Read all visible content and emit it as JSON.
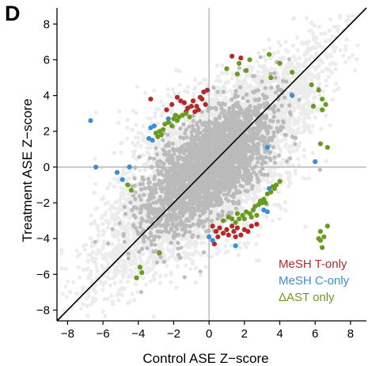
{
  "panel_label": "D",
  "chart_data": {
    "type": "scatter",
    "title": "",
    "xlabel": "Control ASE Z−score",
    "ylabel": "Treatment ASE Z−score",
    "xlim": [
      -8.6,
      8.9
    ],
    "ylim": [
      -8.6,
      8.9
    ],
    "xticks": [
      -8,
      -6,
      -4,
      -2,
      0,
      2,
      4,
      6,
      8
    ],
    "yticks": [
      -8,
      -6,
      -4,
      -2,
      0,
      2,
      4,
      6,
      8
    ],
    "xtick_labels": [
      "−8",
      "−6",
      "−4",
      "−2",
      "0",
      "2",
      "4",
      "6",
      "8"
    ],
    "ytick_labels": [
      "−8",
      "−6",
      "−4",
      "−2",
      "0",
      "2",
      "4",
      "6",
      "8"
    ],
    "grid": false,
    "reference_lines": {
      "identity": true,
      "x_zero": true,
      "y_zero": true
    },
    "legend_position": "bottom-right",
    "background_cloud": {
      "color": "#aaaaaa",
      "description_of_extent": "dense band along identity line, x and y from about -8 to 8"
    },
    "series": [
      {
        "name": "MeSH T-only",
        "color": "#b22a2a",
        "points": [
          [
            -3.3,
            3.8
          ],
          [
            -2.1,
            3.5
          ],
          [
            -1.8,
            3.9
          ],
          [
            -1.6,
            3.7
          ],
          [
            -1.4,
            3.6
          ],
          [
            -1.2,
            3.3
          ],
          [
            -1.0,
            3.4
          ],
          [
            -0.9,
            3.7
          ],
          [
            -0.7,
            3.4
          ],
          [
            -0.6,
            3.2
          ],
          [
            -0.5,
            3.9
          ],
          [
            -0.4,
            3.8
          ],
          [
            -0.3,
            4.2
          ],
          [
            -0.2,
            3.5
          ],
          [
            -0.1,
            4.3
          ],
          [
            -2.4,
            3.2
          ],
          [
            -1.3,
            3.1
          ],
          [
            -0.8,
            3.1
          ],
          [
            1.3,
            6.2
          ],
          [
            1.8,
            6.1
          ],
          [
            0.2,
            -3.3
          ],
          [
            0.4,
            -3.6
          ],
          [
            0.5,
            -3.9
          ],
          [
            0.6,
            -3.4
          ],
          [
            0.8,
            -3.7
          ],
          [
            1.0,
            -3.5
          ],
          [
            1.1,
            -3.8
          ],
          [
            1.3,
            -3.3
          ],
          [
            1.4,
            -3.6
          ],
          [
            1.6,
            -3.4
          ],
          [
            1.8,
            -3.8
          ],
          [
            2.0,
            -3.5
          ],
          [
            2.2,
            -3.6
          ],
          [
            2.4,
            -3.3
          ],
          [
            2.7,
            -3.2
          ],
          [
            0.3,
            -4.3
          ],
          [
            1.5,
            -3.9
          ]
        ]
      },
      {
        "name": "MeSH C-only",
        "color": "#3a8ed8",
        "points": [
          [
            -6.7,
            2.6
          ],
          [
            -3.3,
            2.2
          ],
          [
            -3.1,
            2.3
          ],
          [
            -3.4,
            1.6
          ],
          [
            -3.2,
            1.5
          ],
          [
            -2.3,
            2.7
          ],
          [
            -6.4,
            0.0
          ],
          [
            -5.2,
            -0.3
          ],
          [
            -4.5,
            0.0
          ],
          [
            -4.9,
            -0.7
          ],
          [
            0.0,
            -3.9
          ],
          [
            0.2,
            -4.1
          ],
          [
            3.4,
            -1.2
          ],
          [
            3.1,
            -2.4
          ],
          [
            3.3,
            -2.5
          ],
          [
            6.0,
            0.3
          ],
          [
            4.7,
            4.0
          ],
          [
            1.5,
            -4.4
          ],
          [
            3.3,
            1.1
          ]
        ]
      },
      {
        "name": "ΔAST only",
        "color": "#6a9a1f",
        "points": [
          [
            -3.0,
            1.9
          ],
          [
            -2.8,
            2.0
          ],
          [
            -2.6,
            2.1
          ],
          [
            -2.5,
            2.4
          ],
          [
            -2.3,
            2.5
          ],
          [
            -2.0,
            2.7
          ],
          [
            -1.9,
            2.9
          ],
          [
            -1.7,
            2.8
          ],
          [
            -1.5,
            2.9
          ],
          [
            -1.3,
            3.0
          ],
          [
            -1.1,
            2.8
          ],
          [
            -1.8,
            2.6
          ],
          [
            -2.1,
            2.3
          ],
          [
            -2.7,
            1.8
          ],
          [
            -2.9,
            1.7
          ],
          [
            -4.6,
            -1.0
          ],
          [
            -4.4,
            -1.3
          ],
          [
            -2.8,
            -4.8
          ],
          [
            -3.9,
            -5.6
          ],
          [
            -3.8,
            -5.9
          ],
          [
            -4.1,
            -6.2
          ],
          [
            1.0,
            5.5
          ],
          [
            1.7,
            5.8
          ],
          [
            1.6,
            5.2
          ],
          [
            2.3,
            6.0
          ],
          [
            3.4,
            6.3
          ],
          [
            4.0,
            5.8
          ],
          [
            4.7,
            5.3
          ],
          [
            5.8,
            4.6
          ],
          [
            6.2,
            4.3
          ],
          [
            6.4,
            3.8
          ],
          [
            6.3,
            1.3
          ],
          [
            6.7,
            1.1
          ],
          [
            5.9,
            3.4
          ],
          [
            6.4,
            3.2
          ],
          [
            6.6,
            3.5
          ],
          [
            3.5,
            5.0
          ],
          [
            2.1,
            5.4
          ],
          [
            0.8,
            -3.0
          ],
          [
            1.1,
            -2.8
          ],
          [
            1.3,
            -2.9
          ],
          [
            1.5,
            -3.1
          ],
          [
            1.7,
            -2.9
          ],
          [
            1.9,
            -2.7
          ],
          [
            2.1,
            -2.5
          ],
          [
            2.3,
            -2.6
          ],
          [
            2.5,
            -2.4
          ],
          [
            2.6,
            -2.2
          ],
          [
            2.8,
            -2.1
          ],
          [
            3.0,
            -2.0
          ],
          [
            1.6,
            -2.6
          ],
          [
            2.0,
            -2.9
          ],
          [
            2.9,
            -1.9
          ],
          [
            3.1,
            -1.8
          ],
          [
            3.3,
            -1.5
          ],
          [
            3.5,
            -1.4
          ],
          [
            3.6,
            -1.1
          ],
          [
            3.8,
            -1.0
          ],
          [
            4.0,
            -0.8
          ],
          [
            3.7,
            -1.2
          ],
          [
            3.2,
            -2.0
          ],
          [
            2.4,
            -2.8
          ],
          [
            2.7,
            -2.7
          ],
          [
            6.3,
            -4.1
          ],
          [
            6.4,
            -4.5
          ],
          [
            6.2,
            -4.0
          ],
          [
            6.7,
            -3.3
          ],
          [
            6.3,
            -3.6
          ],
          [
            6.5,
            -3.9
          ]
        ]
      }
    ]
  }
}
